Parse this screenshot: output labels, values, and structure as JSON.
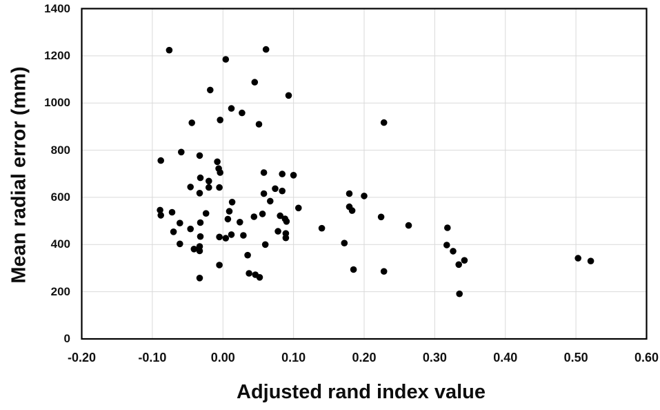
{
  "figure": {
    "x_axis_title": "Adjusted rand index value",
    "y_axis_title": "Mean radial error (mm)"
  },
  "chart_data": {
    "type": "scatter",
    "title": "",
    "xlabel": "Adjusted rand index value",
    "ylabel": "Mean radial error (mm)",
    "xlim": [
      -0.2,
      0.6
    ],
    "ylim": [
      0,
      1400
    ],
    "x_ticks": [
      -0.2,
      -0.1,
      0.0,
      0.1,
      0.2,
      0.3,
      0.4,
      0.5,
      0.6
    ],
    "x_tick_labels": [
      "-0.20",
      "-0.10",
      "0.00",
      "0.10",
      "0.20",
      "0.30",
      "0.40",
      "0.50",
      "0.60"
    ],
    "y_ticks": [
      0,
      200,
      400,
      600,
      800,
      1000,
      1200,
      1400
    ],
    "y_tick_labels": [
      "0",
      "200",
      "400",
      "600",
      "800",
      "1000",
      "1200",
      "1400"
    ],
    "grid": true,
    "legend": "none",
    "marker_color": "#000000",
    "grid_color": "#d9d9d9",
    "border_color": "#000000",
    "marker_radius_px": 4.8,
    "points": [
      [
        -0.076,
        1224
      ],
      [
        0.061,
        1227
      ],
      [
        0.004,
        1185
      ],
      [
        0.045,
        1088
      ],
      [
        -0.018,
        1055
      ],
      [
        0.093,
        1032
      ],
      [
        0.012,
        977
      ],
      [
        0.027,
        958
      ],
      [
        -0.004,
        928
      ],
      [
        -0.044,
        916
      ],
      [
        0.051,
        910
      ],
      [
        0.228,
        917
      ],
      [
        -0.059,
        792
      ],
      [
        -0.033,
        777
      ],
      [
        -0.088,
        756
      ],
      [
        -0.008,
        751
      ],
      [
        -0.006,
        722
      ],
      [
        -0.004,
        705
      ],
      [
        0.058,
        705
      ],
      [
        0.084,
        699
      ],
      [
        0.1,
        694
      ],
      [
        -0.032,
        683
      ],
      [
        -0.02,
        669
      ],
      [
        -0.046,
        644
      ],
      [
        -0.02,
        642
      ],
      [
        -0.005,
        642
      ],
      [
        0.074,
        637
      ],
      [
        0.084,
        627
      ],
      [
        -0.033,
        618
      ],
      [
        0.058,
        616
      ],
      [
        0.179,
        616
      ],
      [
        0.2,
        606
      ],
      [
        0.067,
        584
      ],
      [
        0.013,
        580
      ],
      [
        0.179,
        560
      ],
      [
        0.183,
        544
      ],
      [
        0.107,
        555
      ],
      [
        -0.089,
        546
      ],
      [
        -0.088,
        524
      ],
      [
        -0.072,
        537
      ],
      [
        -0.024,
        532
      ],
      [
        0.009,
        541
      ],
      [
        0.007,
        508
      ],
      [
        0.024,
        495
      ],
      [
        0.044,
        518
      ],
      [
        0.056,
        530
      ],
      [
        0.081,
        522
      ],
      [
        0.088,
        509
      ],
      [
        0.09,
        498
      ],
      [
        -0.061,
        491
      ],
      [
        -0.032,
        493
      ],
      [
        -0.046,
        466
      ],
      [
        -0.07,
        454
      ],
      [
        0.224,
        517
      ],
      [
        0.263,
        481
      ],
      [
        0.14,
        469
      ],
      [
        0.172,
        406
      ],
      [
        -0.061,
        403
      ],
      [
        -0.032,
        434
      ],
      [
        -0.033,
        392
      ],
      [
        -0.041,
        381
      ],
      [
        -0.033,
        373
      ],
      [
        -0.005,
        432
      ],
      [
        0.004,
        427
      ],
      [
        0.012,
        442
      ],
      [
        0.029,
        439
      ],
      [
        0.078,
        456
      ],
      [
        0.089,
        447
      ],
      [
        0.089,
        428
      ],
      [
        0.06,
        400
      ],
      [
        0.035,
        355
      ],
      [
        -0.005,
        313
      ],
      [
        -0.033,
        258
      ],
      [
        0.037,
        278
      ],
      [
        0.046,
        272
      ],
      [
        0.052,
        261
      ],
      [
        0.185,
        294
      ],
      [
        0.228,
        286
      ],
      [
        0.318,
        471
      ],
      [
        0.317,
        398
      ],
      [
        0.326,
        372
      ],
      [
        0.334,
        315
      ],
      [
        0.342,
        333
      ],
      [
        0.335,
        191
      ],
      [
        0.503,
        342
      ],
      [
        0.521,
        330
      ]
    ]
  }
}
